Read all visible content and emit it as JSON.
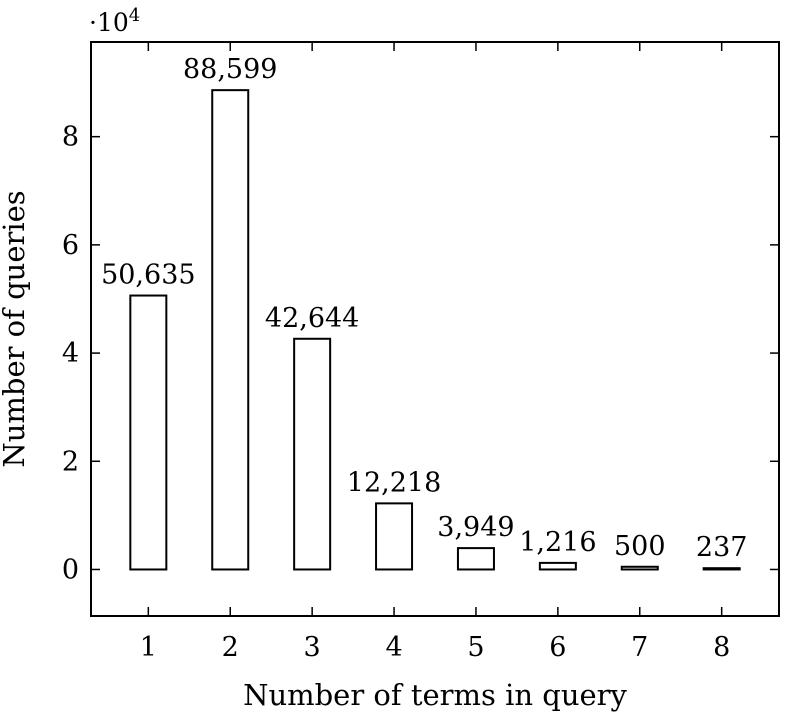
{
  "chart_data": {
    "type": "bar",
    "categories": [
      "1",
      "2",
      "3",
      "4",
      "5",
      "6",
      "7",
      "8"
    ],
    "values": [
      50635,
      88599,
      42644,
      12218,
      3949,
      1216,
      500,
      237
    ],
    "value_labels": [
      "50,635",
      "88,599",
      "42,644",
      "12,218",
      "3,949",
      "1,216",
      "500",
      "237"
    ],
    "title": "",
    "xlabel": "Number of terms in query",
    "ylabel": "Number of queries",
    "y_scale_label": "·10",
    "y_scale_exponent": "4",
    "y_ticks": [
      0,
      2,
      4,
      6,
      8
    ],
    "y_tick_labels": [
      "0",
      "2",
      "4",
      "6",
      "8"
    ],
    "y_tick_multiplier": 10000,
    "xlim": [
      0.3,
      8.7
    ],
    "ylim": [
      -8600,
      97500
    ],
    "grid": false,
    "legend": "none",
    "bar_fill": "#ffffff",
    "bar_stroke": "#000000"
  }
}
